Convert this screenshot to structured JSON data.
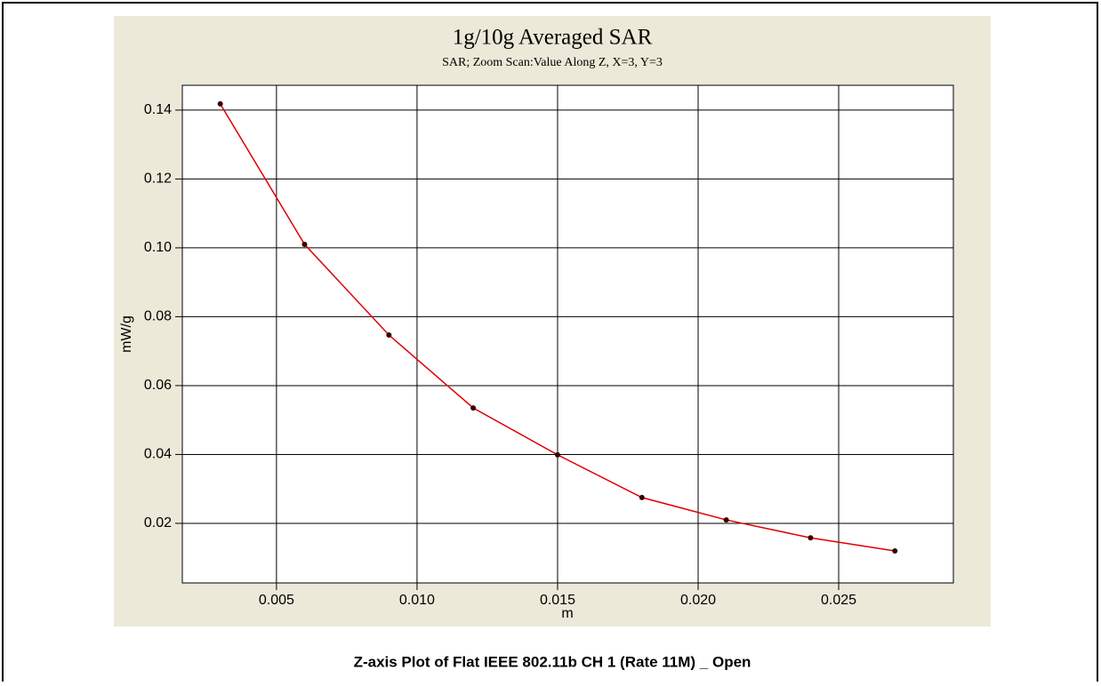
{
  "chart_data": {
    "type": "line",
    "title": "1g/10g Averaged SAR",
    "subtitle": "SAR; Zoom Scan:Value Along Z, X=3, Y=3",
    "x_label": "m",
    "y_label": "mW/g",
    "caption": "Z-axis Plot of Flat IEEE 802.11b CH 1 (Rate 11M) _ Open",
    "x": [
      0.003,
      0.006,
      0.009,
      0.012,
      0.015,
      0.018,
      0.021,
      0.024,
      0.027
    ],
    "series": [
      {
        "name": "SAR",
        "color": "#e00000",
        "values": [
          0.1418,
          0.101,
          0.0747,
          0.0535,
          0.0399,
          0.0275,
          0.021,
          0.0158,
          0.012
        ]
      }
    ],
    "xlim": [
      0.00165,
      0.02908
    ],
    "ylim": [
      0.0027,
      0.1472
    ],
    "xticks": [
      0.005,
      {
        "value": 0.01,
        "label": "0.010"
      },
      0.015,
      {
        "value": 0.02,
        "label": "0.020"
      },
      0.025
    ],
    "yticks": [
      0.02,
      0.04,
      0.06,
      0.08,
      {
        "value": 0.1,
        "label": "0.10"
      },
      0.12,
      0.14
    ],
    "grid": true
  }
}
